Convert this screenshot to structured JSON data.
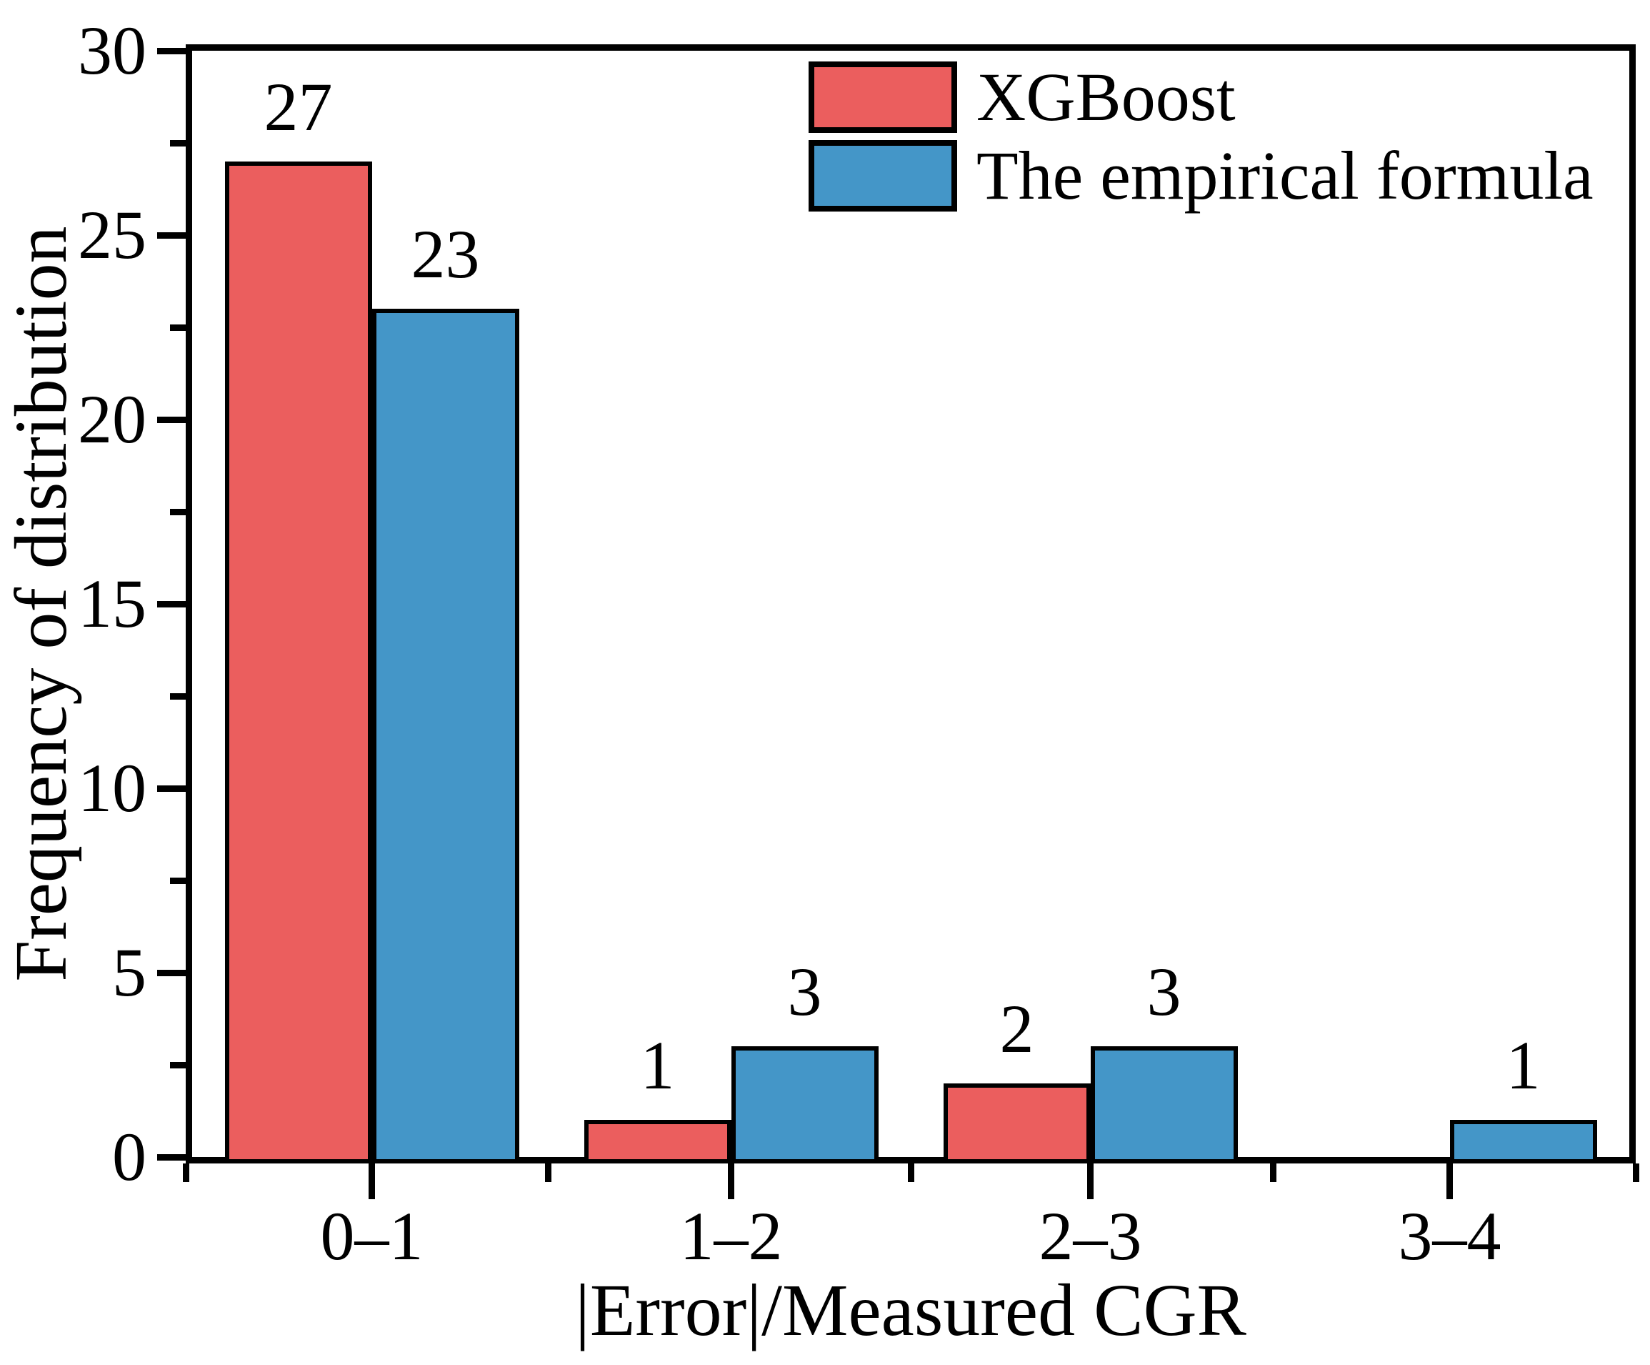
{
  "chart_data": {
    "type": "bar",
    "title": "",
    "xlabel": "|Error|/Measured CGR",
    "ylabel": "Frequency of distribution",
    "categories": [
      "0–1",
      "1–2",
      "2–3",
      "3–4"
    ],
    "series": [
      {
        "name": "XGBoost",
        "color": "#EB5E5E",
        "values": [
          27,
          1,
          2,
          0
        ]
      },
      {
        "name": "The empirical formula",
        "color": "#4496C8",
        "values": [
          23,
          3,
          3,
          1
        ]
      }
    ],
    "bar_value_labels": [
      [
        "27",
        "1",
        "2",
        ""
      ],
      [
        "23",
        "3",
        "3",
        "1"
      ]
    ],
    "ylim": [
      0,
      30
    ],
    "yticks": [
      0,
      5,
      10,
      15,
      20,
      25,
      30
    ],
    "ytick_labels": [
      "0",
      "5",
      "10",
      "15",
      "20",
      "25",
      "30"
    ],
    "y_minor_ticks": [
      2.5,
      7.5,
      12.5,
      17.5,
      22.5,
      27.5
    ],
    "grid": false,
    "legend_position": "top-right",
    "axis_color": "#000000",
    "background_color": "#FFFFFF"
  }
}
